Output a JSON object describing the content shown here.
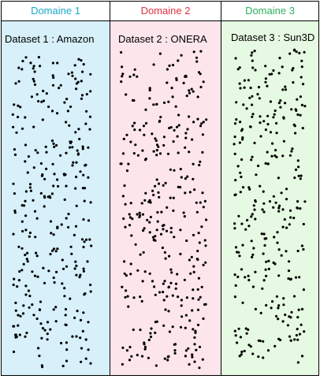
{
  "domains": [
    {
      "header": "Domaine 1",
      "header_color": "#1aa7c8",
      "dataset": "Dataset 1 : Amazon",
      "fill": "#d7f0fa"
    },
    {
      "header": "Domaine 2",
      "header_color": "#e0323c",
      "dataset": "Dataset 2 : ONERA",
      "fill": "#fce6ec"
    },
    {
      "header": "Domaine 3",
      "header_color": "#2bb15a",
      "dataset": "Dataset 3 : Sun3D",
      "fill": "#e6f9e2"
    }
  ]
}
